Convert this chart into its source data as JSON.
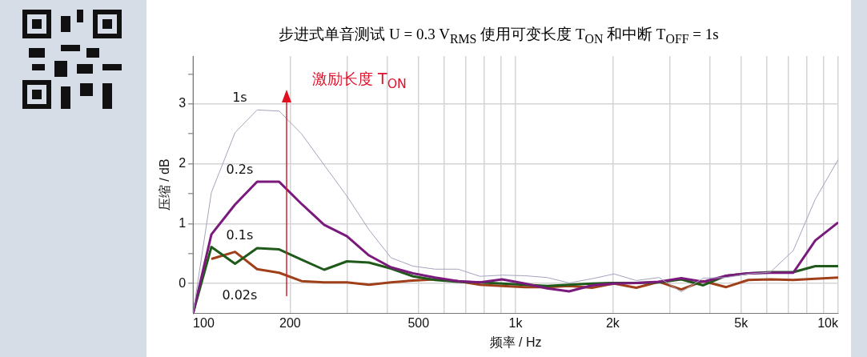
{
  "chart_data": {
    "type": "line",
    "title": "步进式单音测试 U = 0.3 V$_{RMS}$ 使用可变长度 T$_{ON}$ 和中断 T$_{OFF}$ = 1s",
    "xlabel": "频率 / Hz",
    "ylabel": "压缩 / dB",
    "annotations": [
      "激励长度 T$_{ON}$"
    ],
    "x": [
      100,
      114,
      135,
      158,
      185,
      217,
      255,
      300,
      351,
      411,
      481,
      563,
      663,
      776,
      908,
      1069,
      1252,
      1466,
      1726,
      2021,
      2366,
      2786,
      3262,
      3816,
      4496,
      5263,
      6162,
      7255,
      8495,
      10000
    ],
    "series": [
      {
        "name": "1s",
        "color": "#a3a3bd",
        "values": [
          -0.5,
          1.52,
          2.52,
          2.9,
          2.88,
          2.5,
          1.98,
          1.46,
          0.9,
          0.43,
          0.29,
          0.24,
          0.24,
          0.12,
          0.14,
          0.13,
          0.1,
          0.01,
          0.08,
          0.16,
          0.05,
          0.1,
          -0.14,
          0.09,
          0.1,
          0.16,
          0.19,
          0.55,
          1.41,
          2.07
        ]
      },
      {
        "name": "0.2s",
        "color": "#7b1a7d",
        "values": [
          -0.5,
          0.82,
          1.32,
          1.7,
          1.7,
          1.33,
          0.98,
          0.79,
          0.47,
          0.27,
          0.17,
          0.1,
          0.04,
          0.02,
          0.07,
          0,
          -0.08,
          -0.13,
          -0.03,
          0,
          0.01,
          0.03,
          0.09,
          0.03,
          0.13,
          0.17,
          0.18,
          0.18,
          0.72,
          1.02
        ]
      },
      {
        "name": "0.1s",
        "color": "#1f5a1a",
        "values": [
          -0.5,
          0.61,
          0.33,
          0.59,
          0.57,
          0.4,
          0.23,
          0.37,
          0.35,
          0.25,
          0.12,
          0.06,
          0.03,
          0.02,
          0,
          -0.02,
          -0.04,
          -0.02,
          0,
          0.01,
          0.01,
          0.02,
          0.07,
          -0.03,
          0.13,
          0.17,
          0.19,
          0.19,
          0.29,
          0.29
        ]
      },
      {
        "name": "0.02s",
        "color": "#a0401a",
        "values": [
          null,
          0.41,
          0.53,
          0.24,
          0.18,
          0.04,
          0.02,
          0.02,
          -0.02,
          0.02,
          0.05,
          0.07,
          0.04,
          -0.02,
          -0.04,
          -0.06,
          -0.06,
          -0.04,
          -0.07,
          0,
          -0.07,
          0.03,
          -0.1,
          0.04,
          -0.06,
          0.06,
          0.07,
          0.06,
          0.08,
          0.1
        ]
      }
    ],
    "xlim": [
      100,
      10000
    ],
    "ylim": [
      -0.5,
      3.8
    ],
    "xticks": [
      100,
      {
        "value": 200,
        "label": "200"
      },
      {
        "value": 300,
        "label": null
      },
      {
        "value": 400,
        "label": null
      },
      500,
      {
        "value": 600,
        "label": null
      },
      {
        "value": 700,
        "label": null
      },
      {
        "value": 800,
        "label": null
      },
      {
        "value": 900,
        "label": null
      },
      {
        "value": 1000,
        "label": "1k"
      },
      {
        "value": 2000,
        "label": "2k"
      },
      {
        "value": 3000,
        "label": null
      },
      {
        "value": 4000,
        "label": null
      },
      {
        "value": 5000,
        "label": "5k"
      },
      {
        "value": 6000,
        "label": null
      },
      {
        "value": 7000,
        "label": null
      },
      {
        "value": 8000,
        "label": null
      },
      {
        "value": 9000,
        "label": null
      },
      {
        "value": 10000,
        "label": "10k"
      }
    ],
    "yticks": [
      0,
      {
        "value": 0.5,
        "label": null
      },
      1,
      {
        "value": 1.5,
        "label": null
      },
      2,
      {
        "value": 2.5,
        "label": null
      },
      3,
      {
        "value": 3.5,
        "label": null
      }
    ],
    "log": "x",
    "grid": true,
    "legend": false,
    "marker": "none"
  }
}
